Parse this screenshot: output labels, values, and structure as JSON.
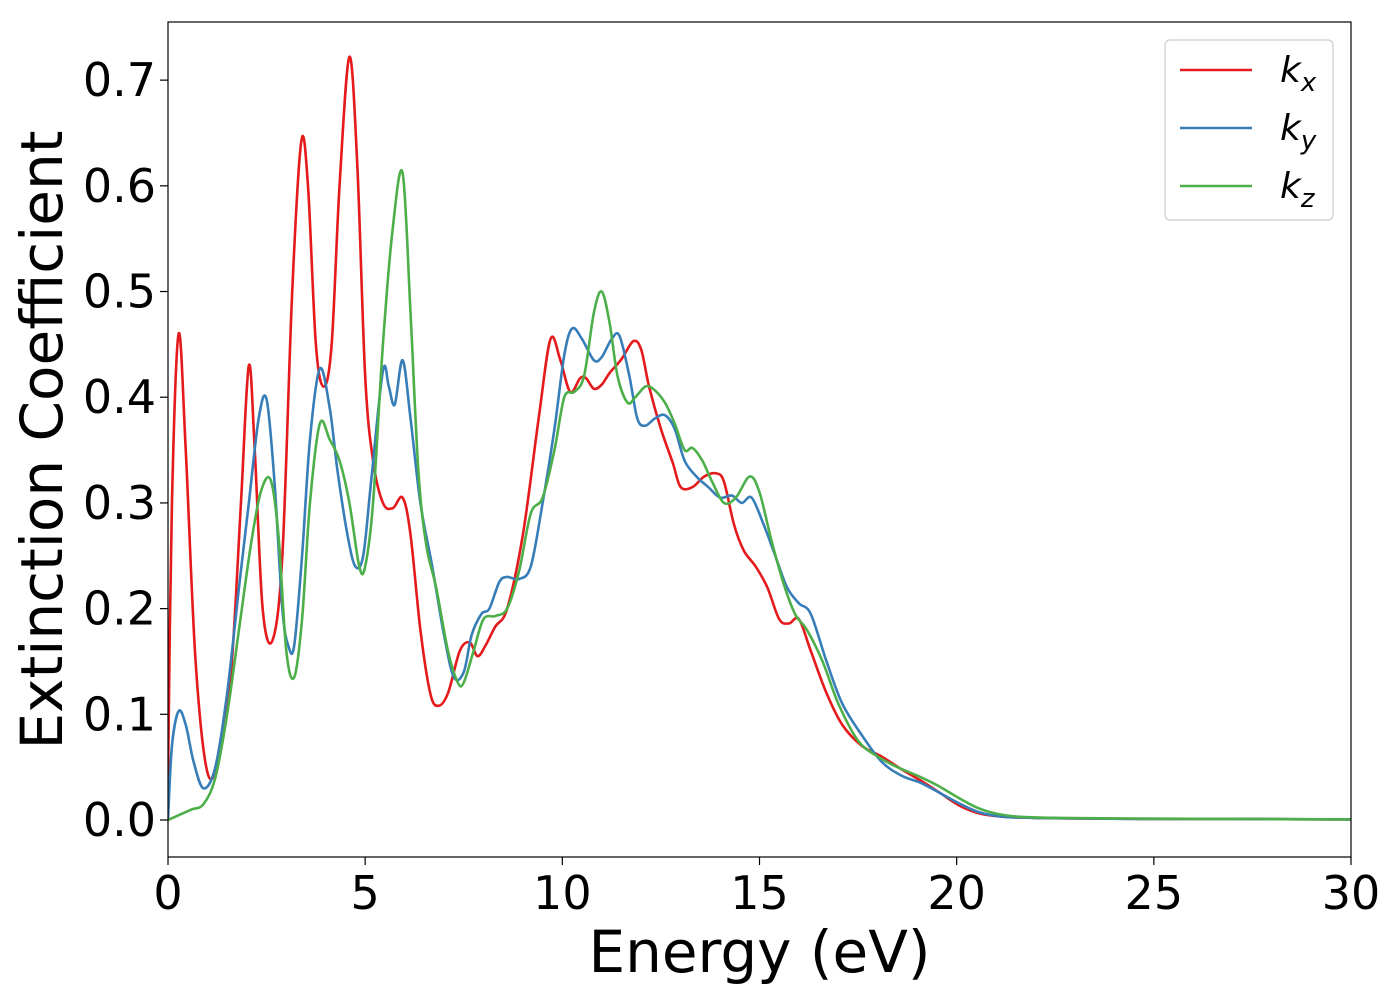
{
  "chart_data": {
    "type": "line",
    "title": "",
    "xlabel": "Energy (eV)",
    "ylabel": "Extinction Coefficient",
    "xlim": [
      0,
      30
    ],
    "ylim": [
      -0.035,
      0.755
    ],
    "xticks": [
      0,
      5,
      10,
      15,
      20,
      25,
      30
    ],
    "xtick_labels": [
      "0",
      "5",
      "10",
      "15",
      "20",
      "25",
      "30"
    ],
    "yticks": [
      0.0,
      0.1,
      0.2,
      0.3,
      0.4,
      0.5,
      0.6,
      0.7
    ],
    "ytick_labels": [
      "0.0",
      "0.1",
      "0.2",
      "0.3",
      "0.4",
      "0.5",
      "0.6",
      "0.7"
    ],
    "grid": false,
    "legend_position": "top-right",
    "series": [
      {
        "name": "k_x",
        "legend_main": "k",
        "legend_sub": "x",
        "color": "#e41a1c",
        "x": [
          0,
          0.1,
          0.27,
          0.45,
          0.7,
          1.0,
          1.3,
          1.6,
          1.85,
          2.05,
          2.2,
          2.4,
          2.65,
          2.9,
          3.15,
          3.38,
          3.55,
          3.75,
          3.95,
          4.15,
          4.35,
          4.6,
          4.8,
          5.0,
          5.2,
          5.45,
          5.7,
          5.95,
          6.15,
          6.4,
          6.65,
          6.85,
          7.1,
          7.4,
          7.65,
          7.85,
          8.05,
          8.3,
          8.6,
          9.0,
          9.4,
          9.7,
          9.95,
          10.2,
          10.45,
          10.6,
          10.8,
          11.0,
          11.2,
          11.5,
          11.8,
          12.0,
          12.2,
          12.5,
          12.8,
          13.0,
          13.3,
          13.6,
          13.9,
          14.1,
          14.35,
          14.6,
          14.9,
          15.2,
          15.5,
          15.75,
          16.0,
          16.3,
          16.7,
          17.1,
          17.6,
          18.1,
          18.6,
          19.1,
          19.6,
          20.1,
          20.6,
          21.2,
          22.0,
          23.0,
          25.0,
          27.0,
          30.0
        ],
        "y": [
          0.04,
          0.3,
          0.46,
          0.35,
          0.15,
          0.045,
          0.06,
          0.14,
          0.3,
          0.43,
          0.35,
          0.2,
          0.17,
          0.25,
          0.5,
          0.642,
          0.6,
          0.45,
          0.41,
          0.45,
          0.6,
          0.722,
          0.62,
          0.42,
          0.34,
          0.3,
          0.295,
          0.305,
          0.27,
          0.18,
          0.12,
          0.108,
          0.12,
          0.16,
          0.168,
          0.155,
          0.165,
          0.183,
          0.2,
          0.27,
          0.38,
          0.455,
          0.435,
          0.405,
          0.418,
          0.418,
          0.408,
          0.412,
          0.423,
          0.436,
          0.453,
          0.445,
          0.41,
          0.37,
          0.338,
          0.315,
          0.315,
          0.325,
          0.328,
          0.32,
          0.28,
          0.255,
          0.24,
          0.22,
          0.19,
          0.186,
          0.19,
          0.16,
          0.12,
          0.09,
          0.07,
          0.06,
          0.048,
          0.037,
          0.025,
          0.013,
          0.006,
          0.003,
          0.002,
          0.0015,
          0.001,
          0.001,
          0.0005
        ]
      },
      {
        "name": "k_y",
        "legend_main": "k",
        "legend_sub": "y",
        "color": "#377eb8",
        "x": [
          0,
          0.1,
          0.27,
          0.45,
          0.65,
          0.9,
          1.2,
          1.5,
          1.8,
          2.05,
          2.3,
          2.5,
          2.7,
          2.9,
          3.05,
          3.2,
          3.4,
          3.6,
          3.85,
          4.1,
          4.3,
          4.55,
          4.75,
          4.95,
          5.15,
          5.45,
          5.6,
          5.75,
          5.95,
          6.15,
          6.4,
          6.7,
          7.0,
          7.25,
          7.5,
          7.7,
          7.95,
          8.15,
          8.4,
          8.6,
          8.9,
          9.2,
          9.5,
          9.8,
          10.05,
          10.25,
          10.5,
          10.8,
          11.0,
          11.25,
          11.45,
          11.7,
          11.9,
          12.1,
          12.35,
          12.6,
          12.85,
          13.1,
          13.4,
          13.7,
          14.0,
          14.3,
          14.55,
          14.8,
          15.1,
          15.4,
          15.7,
          16.0,
          16.3,
          16.7,
          17.1,
          17.6,
          18.1,
          18.6,
          19.1,
          19.6,
          20.1,
          20.6,
          21.2,
          22.0,
          23.0,
          25.0,
          27.0,
          30.0
        ],
        "y": [
          0.0,
          0.07,
          0.103,
          0.09,
          0.055,
          0.03,
          0.05,
          0.12,
          0.22,
          0.3,
          0.38,
          0.398,
          0.32,
          0.2,
          0.165,
          0.165,
          0.25,
          0.36,
          0.427,
          0.39,
          0.33,
          0.27,
          0.24,
          0.25,
          0.32,
          0.425,
          0.41,
          0.393,
          0.435,
          0.38,
          0.3,
          0.24,
          0.175,
          0.135,
          0.14,
          0.175,
          0.195,
          0.2,
          0.225,
          0.23,
          0.228,
          0.24,
          0.3,
          0.37,
          0.44,
          0.465,
          0.455,
          0.435,
          0.438,
          0.455,
          0.458,
          0.42,
          0.38,
          0.373,
          0.38,
          0.383,
          0.37,
          0.34,
          0.325,
          0.315,
          0.305,
          0.307,
          0.3,
          0.305,
          0.28,
          0.25,
          0.22,
          0.205,
          0.195,
          0.15,
          0.11,
          0.08,
          0.055,
          0.042,
          0.035,
          0.025,
          0.015,
          0.007,
          0.003,
          0.002,
          0.0015,
          0.001,
          0.001,
          0.0005
        ]
      },
      {
        "name": "k_z",
        "legend_main": "k",
        "legend_sub": "z",
        "color": "#4daf4a",
        "x": [
          0,
          0.3,
          0.6,
          0.9,
          1.2,
          1.5,
          1.8,
          2.1,
          2.35,
          2.6,
          2.8,
          3.0,
          3.2,
          3.4,
          3.6,
          3.85,
          4.1,
          4.35,
          4.6,
          4.85,
          5.0,
          5.2,
          5.45,
          5.7,
          5.95,
          6.15,
          6.35,
          6.55,
          6.8,
          7.1,
          7.35,
          7.5,
          7.75,
          8.0,
          8.3,
          8.6,
          8.9,
          9.2,
          9.5,
          9.8,
          10.05,
          10.3,
          10.55,
          10.8,
          11.0,
          11.2,
          11.4,
          11.65,
          11.85,
          12.1,
          12.3,
          12.6,
          12.85,
          13.1,
          13.3,
          13.55,
          13.8,
          14.1,
          14.4,
          14.75,
          15.0,
          15.3,
          15.6,
          15.9,
          16.2,
          16.6,
          17.0,
          17.5,
          18.0,
          18.5,
          19.0,
          19.5,
          20.0,
          20.5,
          21.0,
          21.6,
          22.5,
          24.0,
          27.0,
          30.0
        ],
        "y": [
          0.0,
          0.005,
          0.01,
          0.015,
          0.04,
          0.1,
          0.18,
          0.26,
          0.31,
          0.322,
          0.27,
          0.16,
          0.135,
          0.19,
          0.3,
          0.375,
          0.36,
          0.34,
          0.3,
          0.24,
          0.24,
          0.3,
          0.45,
          0.56,
          0.612,
          0.48,
          0.33,
          0.26,
          0.22,
          0.16,
          0.13,
          0.13,
          0.16,
          0.19,
          0.193,
          0.2,
          0.235,
          0.29,
          0.305,
          0.35,
          0.4,
          0.405,
          0.42,
          0.48,
          0.5,
          0.47,
          0.42,
          0.395,
          0.4,
          0.41,
          0.408,
          0.395,
          0.375,
          0.35,
          0.352,
          0.34,
          0.32,
          0.3,
          0.305,
          0.325,
          0.31,
          0.265,
          0.225,
          0.195,
          0.18,
          0.15,
          0.11,
          0.075,
          0.06,
          0.05,
          0.042,
          0.033,
          0.022,
          0.012,
          0.006,
          0.003,
          0.002,
          0.0015,
          0.001,
          0.0005
        ]
      }
    ]
  }
}
